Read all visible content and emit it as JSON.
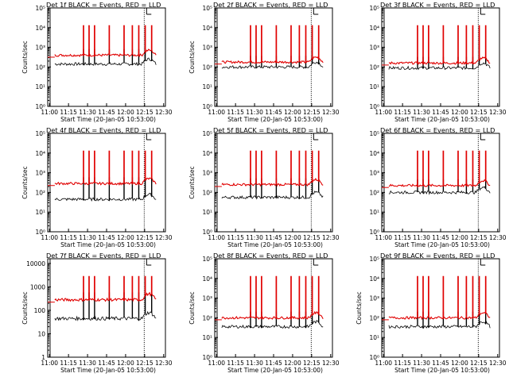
{
  "colors": {
    "events": "#000000",
    "lld": "#e00000",
    "axis": "#000000"
  },
  "x_tick_labels": [
    "11:00",
    "11:15",
    "11:30",
    "11:45",
    "12:00",
    "12:15",
    "12:30"
  ],
  "xlim": [
    0,
    100
  ],
  "chart_data": [
    {
      "type": "line",
      "title": "Det 1f BLACK = Events, RED = LLD",
      "xlabel": "Start Time (20-Jan-05 10:53:00)",
      "ylabel": "Counts/sec",
      "y_tick_labels": [
        "10⁰",
        "10¹",
        "10²",
        "10³",
        "10⁴",
        "10⁵"
      ],
      "ylim_log10": [
        0,
        5
      ],
      "series": [
        {
          "name": "BLACK = Events",
          "level": 2.15
        },
        {
          "name": "RED = LLD",
          "level": 2.6
        }
      ]
    },
    {
      "type": "line",
      "title": "Det 2f BLACK = Events, RED = LLD",
      "xlabel": "Start Time (20-Jan-05 10:53:00)",
      "ylabel": "Counts/sec",
      "y_tick_labels": [
        "10⁰",
        "10¹",
        "10²",
        "10³",
        "10⁴",
        "10⁵"
      ],
      "ylim_log10": [
        0,
        5
      ],
      "series": [
        {
          "name": "BLACK = Events",
          "level": 2.0
        },
        {
          "name": "RED = LLD",
          "level": 2.25
        }
      ]
    },
    {
      "type": "line",
      "title": "Det 3f BLACK = Events, RED = LLD",
      "xlabel": "Start Time (20-Jan-05 10:53:00)",
      "ylabel": "",
      "y_tick_labels": [
        "10⁰",
        "10¹",
        "10²",
        "10³",
        "10⁴",
        "10⁵"
      ],
      "ylim_log10": [
        0,
        5
      ],
      "series": [
        {
          "name": "BLACK = Events",
          "level": 1.95
        },
        {
          "name": "RED = LLD",
          "level": 2.2
        }
      ]
    },
    {
      "type": "line",
      "title": "Det 4f BLACK = Events, RED = LLD",
      "xlabel": "Start Time (20-Jan-05 10:53:00)",
      "ylabel": "Counts/sec",
      "y_tick_labels": [
        "10⁰",
        "10¹",
        "10²",
        "10³",
        "10⁴",
        "10⁵"
      ],
      "ylim_log10": [
        0,
        5
      ],
      "series": [
        {
          "name": "BLACK = Events",
          "level": 1.65
        },
        {
          "name": "RED = LLD",
          "level": 2.45
        }
      ]
    },
    {
      "type": "line",
      "title": "Det 5f BLACK = Events, RED = LLD",
      "xlabel": "Start Time (20-Jan-05 10:53:00)",
      "ylabel": "Counts/sec",
      "y_tick_labels": [
        "10⁰",
        "10¹",
        "10²",
        "10³",
        "10⁴",
        "10⁵"
      ],
      "ylim_log10": [
        0,
        5
      ],
      "series": [
        {
          "name": "BLACK = Events",
          "level": 1.75
        },
        {
          "name": "RED = LLD",
          "level": 2.4
        }
      ]
    },
    {
      "type": "line",
      "title": "Det 6f BLACK = Events, RED = LLD",
      "xlabel": "Start Time (20-Jan-05 10:53:00)",
      "ylabel": "",
      "y_tick_labels": [
        "10⁰",
        "10¹",
        "10²",
        "10³",
        "10⁴",
        "10⁵"
      ],
      "ylim_log10": [
        0,
        5
      ],
      "series": [
        {
          "name": "BLACK = Events",
          "level": 2.0
        },
        {
          "name": "RED = LLD",
          "level": 2.35
        }
      ]
    },
    {
      "type": "line",
      "title": "Det 7f BLACK = Events, RED = LLD",
      "xlabel": "Start Time (20-Jan-05 10:53:00)",
      "ylabel": "Counts/sec",
      "y_tick_labels": [
        "1",
        "10",
        "100",
        "1000",
        "10000"
      ],
      "ylim_log10": [
        0,
        4.2
      ],
      "series": [
        {
          "name": "BLACK = Events",
          "level": 1.65
        },
        {
          "name": "RED = LLD",
          "level": 2.45
        }
      ]
    },
    {
      "type": "line",
      "title": "Det 8f BLACK = Events, RED = LLD",
      "xlabel": "Start Time (20-Jan-05 10:53:00)",
      "ylabel": "Counts/sec",
      "y_tick_labels": [
        "10⁰",
        "10¹",
        "10²",
        "10³",
        "10⁴",
        "10⁵"
      ],
      "ylim_log10": [
        0,
        5
      ],
      "series": [
        {
          "name": "BLACK = Events",
          "level": 1.55
        },
        {
          "name": "RED = LLD",
          "level": 2.0
        }
      ]
    },
    {
      "type": "line",
      "title": "Det 9f BLACK = Events, RED = LLD",
      "xlabel": "Start Time (20-Jan-05 10:53:00)",
      "ylabel": "Counts/sec",
      "y_tick_labels": [
        "10⁰",
        "10¹",
        "10²",
        "10³",
        "10⁴",
        "10⁵"
      ],
      "ylim_log10": [
        0,
        5
      ],
      "series": [
        {
          "name": "BLACK = Events",
          "level": 1.55
        },
        {
          "name": "RED = LLD",
          "level": 2.0
        }
      ]
    }
  ]
}
